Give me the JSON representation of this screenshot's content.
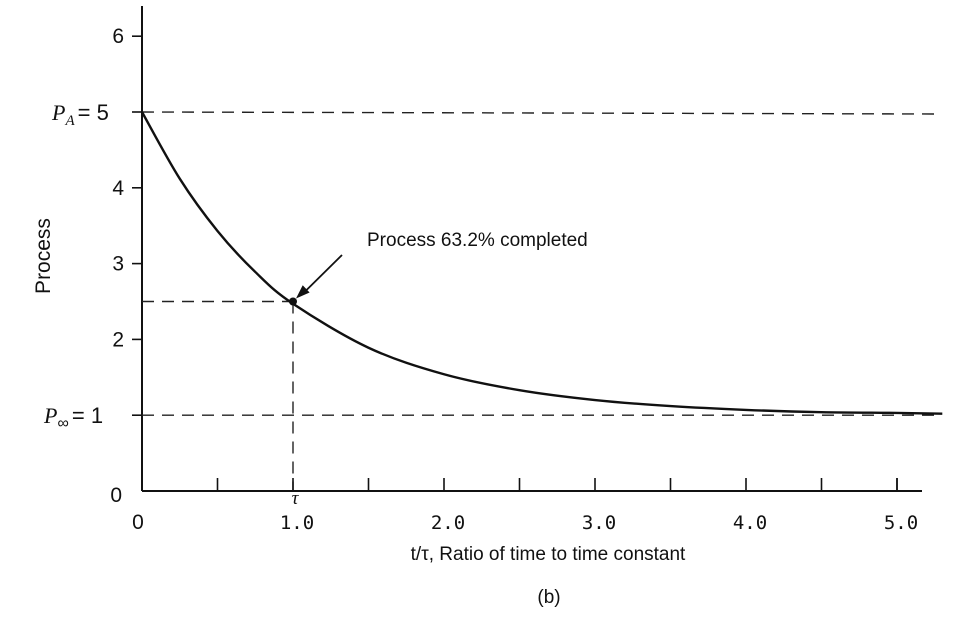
{
  "chart_data": {
    "type": "line",
    "title": "",
    "xlabel": "t/τ, Ratio of time to time constant",
    "ylabel": "Process",
    "caption": "(b)",
    "xlim": [
      0,
      5.3
    ],
    "ylim": [
      0,
      6.4
    ],
    "x_ticks": [
      "0",
      "1.0",
      "2.0",
      "3.0",
      "4.0",
      "5.0"
    ],
    "y_ticks": [
      "0",
      "1",
      "2",
      "3",
      "4",
      "5",
      "6"
    ],
    "minor_x_ticks": [
      0.5,
      1.5,
      2.5,
      3.5,
      4.5,
      5.0
    ],
    "series": [
      {
        "x": [
          0,
          0.25,
          0.5,
          0.75,
          1.0,
          1.5,
          2.0,
          2.5,
          3.0,
          3.5,
          4.0,
          4.5,
          5.0,
          5.3
        ],
        "y": [
          5.0,
          4.12,
          3.43,
          2.89,
          2.47,
          1.89,
          1.54,
          1.33,
          1.2,
          1.12,
          1.07,
          1.04,
          1.03,
          1.02
        ]
      }
    ],
    "reference_lines": [
      {
        "axis": "y",
        "value": 5,
        "label_main": "P",
        "label_sub": "A",
        "label_value": "= 5"
      },
      {
        "axis": "y",
        "value": 1,
        "label_main": "P",
        "label_sub": "∞",
        "label_value": "= 1"
      },
      {
        "axis": "y",
        "value": 2.5,
        "to_x": 1.0
      },
      {
        "axis": "x",
        "value": 1.0,
        "label": "τ"
      }
    ],
    "annotations": [
      {
        "text": "Process 63.2% completed",
        "point": [
          1.0,
          2.5
        ]
      }
    ],
    "grid": false,
    "legend": "none"
  }
}
